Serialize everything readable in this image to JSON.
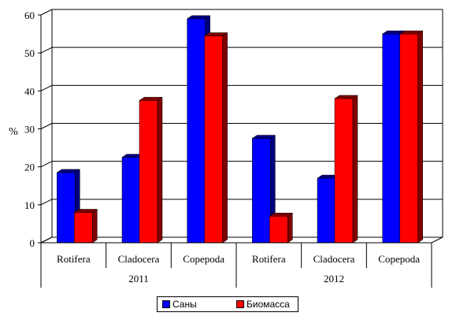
{
  "chart_data": {
    "type": "bar",
    "ylabel": "%",
    "ylim": [
      0,
      60
    ],
    "yticks": [
      0,
      10,
      20,
      30,
      40,
      50,
      60
    ],
    "grid": true,
    "legend_position": "bottom",
    "groups": [
      {
        "label": "2011",
        "categories": [
          "Rotifera",
          "Cladocera",
          "Copepoda"
        ]
      },
      {
        "label": "2012",
        "categories": [
          "Rotifera",
          "Cladocera",
          "Copepoda"
        ]
      }
    ],
    "series": [
      {
        "name": "Саны",
        "color": "#0000ff",
        "side_color": "#00007f",
        "values": [
          18.5,
          22.5,
          59,
          27.5,
          17,
          55
        ]
      },
      {
        "name": "Биомасса",
        "color": "#ff0000",
        "side_color": "#7f0000",
        "values": [
          8,
          37.5,
          54.5,
          7,
          38,
          55
        ]
      }
    ]
  }
}
